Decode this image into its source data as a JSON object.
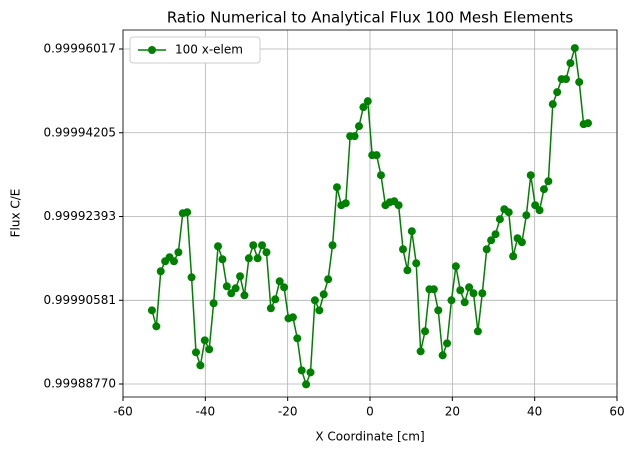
{
  "chart_data": {
    "type": "line",
    "title": "Ratio Numerical to Analytical Flux 100 Mesh Elements",
    "x_label": "X Coordinate [cm]",
    "y_label": "Flux C/E",
    "x": [
      -52.97,
      -51.9,
      -50.83,
      -49.76,
      -48.69,
      -47.62,
      -46.55,
      -45.48,
      -44.41,
      -43.34,
      -42.27,
      -41.2,
      -40.13,
      -39.06,
      -37.99,
      -36.92,
      -35.85,
      -34.78,
      -33.71,
      -32.64,
      -31.57,
      -30.5,
      -29.43,
      -28.36,
      -27.29,
      -26.22,
      -25.15,
      -24.08,
      -23.01,
      -21.94,
      -20.87,
      -19.8,
      -18.73,
      -17.66,
      -16.59,
      -15.52,
      -14.45,
      -13.38,
      -12.31,
      -11.24,
      -10.17,
      -9.1,
      -8.03,
      -6.96,
      -5.89,
      -4.82,
      -3.75,
      -2.68,
      -1.61,
      -0.54,
      0.53,
      1.6,
      2.67,
      3.74,
      4.81,
      5.88,
      6.95,
      8.02,
      9.09,
      10.16,
      11.23,
      12.3,
      13.37,
      14.44,
      15.51,
      16.58,
      17.65,
      18.72,
      19.79,
      20.86,
      21.93,
      23,
      24.07,
      25.14,
      26.21,
      27.28,
      28.35,
      29.42,
      30.49,
      31.56,
      32.63,
      33.7,
      34.77,
      35.84,
      36.91,
      37.98,
      39.05,
      40.12,
      41.19,
      42.26,
      43.33,
      44.4,
      45.47,
      46.54,
      47.61,
      48.68,
      49.75,
      50.82,
      51.89,
      52.96
    ],
    "series": [
      {
        "name": "100 x-elem",
        "color": "#008000",
        "values": [
          0.99990364,
          0.99990018,
          0.99991209,
          0.99991425,
          0.99991512,
          0.99991425,
          0.9999162,
          0.99992465,
          0.99992486,
          0.99991079,
          0.99989455,
          0.99989174,
          0.99989715,
          0.9998952,
          0.99990516,
          0.9999175,
          0.99991469,
          0.99990884,
          0.99990733,
          0.99990841,
          0.99991101,
          0.99990689,
          0.9999149,
          0.99991772,
          0.9999149,
          0.99991772,
          0.9999162,
          0.99990408,
          0.99990603,
          0.99990992,
          0.99990862,
          0.99990191,
          0.99990213,
          0.99989758,
          0.99989065,
          0.99988762,
          0.99989022,
          0.99990581,
          0.99990364,
          0.99990711,
          0.99991036,
          0.99991772,
          0.99993027,
          0.99992638,
          0.99992681,
          0.99994132,
          0.99994132,
          0.99994348,
          0.99994759,
          0.99994889,
          0.9999372,
          0.9999372,
          0.99993287,
          0.99992638,
          0.99992703,
          0.99992724,
          0.99992638,
          0.99991685,
          0.99991231,
          0.99992075,
          0.99991382,
          0.99989477,
          0.9998991,
          0.99990819,
          0.99990819,
          0.99990364,
          0.9998939,
          0.9998965,
          0.99990581,
          0.99991317,
          0.99990798,
          0.99990538,
          0.99990862,
          0.99990733,
          0.9998991,
          0.99990733,
          0.99991685,
          0.9999188,
          0.9999201,
          0.99992335,
          0.99992551,
          0.99992486,
          0.99991534,
          0.99991923,
          0.99991837,
          0.99992421,
          0.99993287,
          0.99992638,
          0.9999253,
          0.99992984,
          0.99993157,
          0.99994824,
          0.99995084,
          0.99995366,
          0.99995366,
          0.99995712,
          0.99996037,
          0.99995301,
          0.99994391,
          0.99994413
        ]
      }
    ],
    "xlim": [
      -60,
      60
    ],
    "xticks": [
      -60,
      -40,
      -20,
      0,
      20,
      40,
      60
    ],
    "ylim": [
      0.99988489,
      0.99996428
    ],
    "yticks": [
      {
        "value": 0.9998877,
        "label": "0.99988770"
      },
      0.99990581,
      0.99992393,
      0.99994205,
      0.99996017
    ],
    "grid": true,
    "legend": "upper left"
  }
}
